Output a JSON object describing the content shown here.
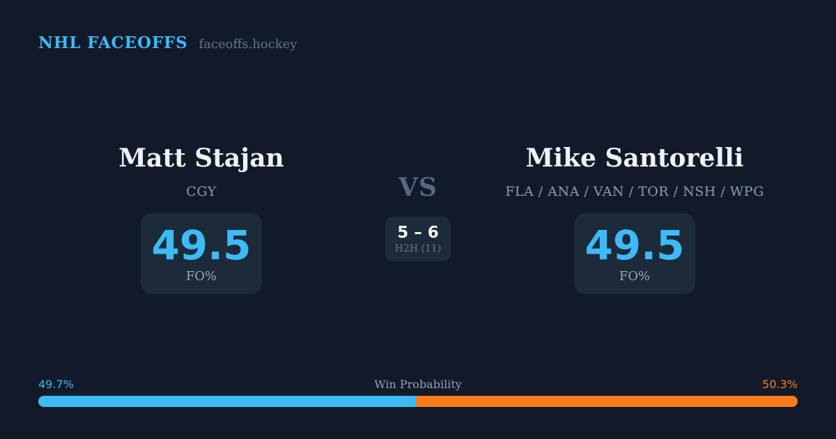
{
  "header": {
    "brand": "NHL FACEOFFS",
    "site": "faceoffs.hockey"
  },
  "matchup": {
    "vs_label": "VS",
    "player1": {
      "name": "Matt Stajan",
      "teams": "CGY",
      "fo_pct": "49.5",
      "fo_label": "FO%"
    },
    "player2": {
      "name": "Mike Santorelli",
      "teams": "FLA / ANA / VAN / TOR / NSH / WPG",
      "fo_pct": "49.5",
      "fo_label": "FO%"
    },
    "h2h": {
      "score": "5 – 6",
      "label": "H2H (11)"
    }
  },
  "win_probability": {
    "title": "Win Probability",
    "left_label": "49.7%",
    "right_label": "50.3%",
    "left_value": 49.7,
    "right_value": 50.3,
    "left_color": "#3cbbf6",
    "right_color": "#f97b1d",
    "left_bar_style": "width:49.7%;background:#3cbbf6",
    "right_bar_style": "background:#f97b1d"
  },
  "colors": {
    "background": "#121a29",
    "card": "#1d2a3a",
    "accent_blue": "#3cbbf6",
    "accent_orange": "#f97b1d",
    "text_primary": "#eef2f8",
    "text_muted": "#64748b"
  }
}
